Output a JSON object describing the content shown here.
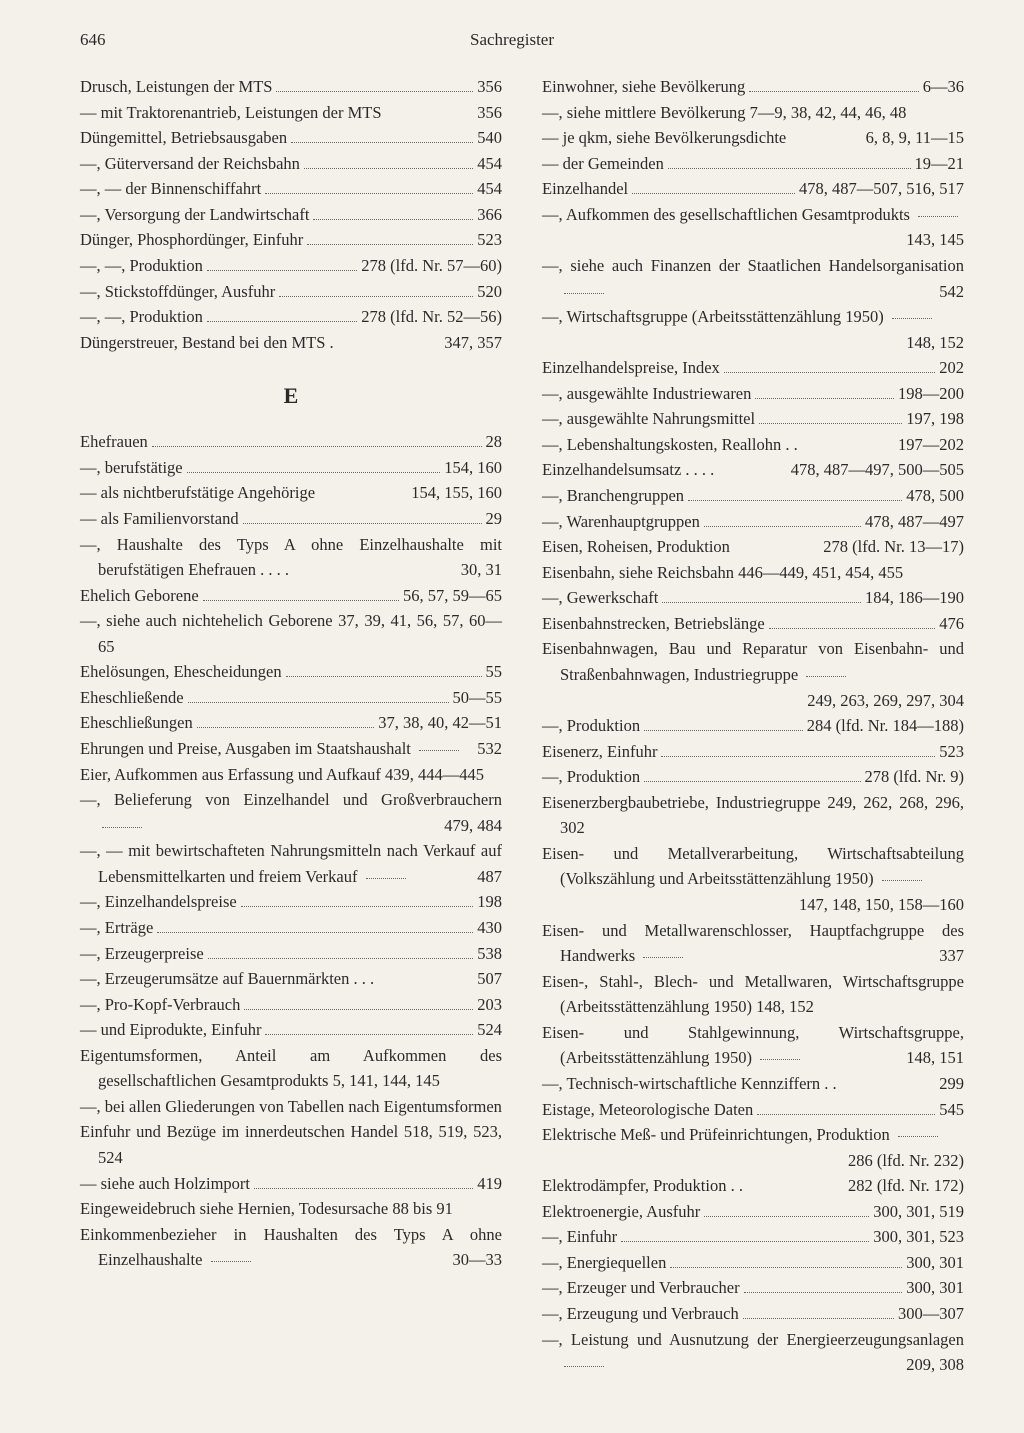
{
  "page_number": "646",
  "header_title": "Sachregister",
  "section_letter": "E",
  "left": [
    {
      "t": "Drusch, Leistungen der MTS",
      "p": "356",
      "d": true
    },
    {
      "t": "— mit Traktorenantrieb, Leistungen der MTS",
      "p": "356"
    },
    {
      "t": "Düngemittel, Betriebsausgaben",
      "p": "540",
      "d": true
    },
    {
      "t": "—, Güterversand der Reichsbahn",
      "p": "454",
      "d": true
    },
    {
      "t": "—, — der Binnenschiffahrt",
      "p": "454",
      "d": true
    },
    {
      "t": "—, Versorgung der Landwirtschaft",
      "p": "366",
      "d": true
    },
    {
      "t": "Dünger, Phosphordünger, Einfuhr",
      "p": "523",
      "d": true
    },
    {
      "t": "—, —, Produktion",
      "p": "278 (lfd. Nr. 57—60)",
      "d": true
    },
    {
      "t": "—, Stickstoffdünger, Ausfuhr",
      "p": "520",
      "d": true
    },
    {
      "t": "—, —, Produktion",
      "p": "278 (lfd. Nr. 52—56)",
      "d": true
    },
    {
      "t": "Düngerstreuer, Bestand bei den MTS .",
      "p": "347, 357"
    }
  ],
  "left2": [
    {
      "t": "Ehefrauen",
      "p": "28",
      "d": true
    },
    {
      "t": "—, berufstätige",
      "p": "154, 160",
      "d": true
    },
    {
      "t": "— als nichtberufstätige Angehörige",
      "p": "154, 155, 160"
    },
    {
      "t": "— als Familienvorstand",
      "p": "29",
      "d": true
    },
    {
      "t": "—, Haushalte des Typs A ohne Einzelhaushalte mit berufstätigen Ehefrauen . . . .",
      "p": "30, 31",
      "wrap": true
    },
    {
      "t": "Ehelich Geborene",
      "p": "56, 57, 59—65",
      "d": true
    },
    {
      "t": "—, siehe auch nichtehelich Geborene 37, 39, 41, 56, 57, 60—65",
      "plain": true
    },
    {
      "t": "Ehelösungen, Ehescheidungen",
      "p": "55",
      "d": true
    },
    {
      "t": "Eheschließende",
      "p": "50—55",
      "d": true
    },
    {
      "t": "Eheschließungen",
      "p": "37, 38, 40, 42—51",
      "d": true
    },
    {
      "t": "Ehrungen und Preise, Ausgaben im Staatshaushalt",
      "p": "532",
      "d": true,
      "wrap": true
    },
    {
      "t": "Eier, Aufkommen aus Erfassung und Aufkauf 439, 444—445",
      "plain": true
    },
    {
      "t": "—, Belieferung von Einzelhandel und Großverbrauchern",
      "p": "479, 484",
      "d": true,
      "wrap": true
    },
    {
      "t": "—, — mit bewirtschafteten Nahrungsmitteln nach Verkauf auf Lebensmittelkarten und freiem Verkauf",
      "p": "487",
      "d": true,
      "wrap": true
    },
    {
      "t": "—, Einzelhandelspreise",
      "p": "198",
      "d": true
    },
    {
      "t": "—, Erträge",
      "p": "430",
      "d": true
    },
    {
      "t": "—, Erzeugerpreise",
      "p": "538",
      "d": true
    },
    {
      "t": "—, Erzeugerumsätze auf Bauernmärkten . . .",
      "p": "507"
    },
    {
      "t": "—, Pro-Kopf-Verbrauch",
      "p": "203",
      "d": true
    },
    {
      "t": "— und Eiprodukte, Einfuhr",
      "p": "524",
      "d": true
    },
    {
      "t": "Eigentumsformen, Anteil am Aufkommen des gesellschaftlichen Gesamtprodukts 5, 141, 144, 145",
      "plain": true
    },
    {
      "t": "—, bei allen Gliederungen von Tabellen nach Eigentumsformen",
      "plain": true
    },
    {
      "t": "Einfuhr und Bezüge im innerdeutschen Handel 518, 519, 523, 524",
      "plain": true
    },
    {
      "t": "— siehe auch Holzimport",
      "p": "419",
      "d": true
    },
    {
      "t": "Eingeweidebruch siehe Hernien, Todesursache 88 bis 91",
      "plain": true
    },
    {
      "t": "Einkommenbezieher in Haushalten des Typs A ohne Einzelhaushalte",
      "p": "30—33",
      "d": true,
      "wrap": true
    }
  ],
  "right": [
    {
      "t": "Einwohner, siehe Bevölkerung",
      "p": "6—36",
      "d": true
    },
    {
      "t": "—, siehe mittlere Bevölkerung 7—9, 38, 42, 44, 46, 48",
      "plain": true
    },
    {
      "t": "— je qkm, siehe Bevölkerungsdichte",
      "p": "6, 8, 9, 11—15"
    },
    {
      "t": "— der Gemeinden",
      "p": "19—21",
      "d": true
    },
    {
      "t": "Einzelhandel",
      "p": "478, 487—507, 516, 517",
      "d": true
    },
    {
      "t": "—, Aufkommen des gesellschaftlichen Gesamtprodukts",
      "p": "143, 145",
      "d": true,
      "wrap": true
    },
    {
      "t": "—, siehe auch Finanzen der Staatlichen Handelsorganisation",
      "p": "542",
      "d": true,
      "wrap": true
    },
    {
      "t": "—, Wirtschaftsgruppe (Arbeitsstättenzählung 1950)",
      "p": "148, 152",
      "d": true,
      "wrap": true
    },
    {
      "t": "Einzelhandelspreise, Index",
      "p": "202",
      "d": true
    },
    {
      "t": "—, ausgewählte Industriewaren",
      "p": "198—200",
      "d": true
    },
    {
      "t": "—, ausgewählte Nahrungsmittel",
      "p": "197, 198",
      "d": true
    },
    {
      "t": "—, Lebenshaltungskosten, Reallohn . .",
      "p": "197—202"
    },
    {
      "t": "Einzelhandelsumsatz . . . .",
      "p": "478, 487—497, 500—505"
    },
    {
      "t": "—, Branchengruppen",
      "p": "478, 500",
      "d": true
    },
    {
      "t": "—, Warenhauptgruppen",
      "p": "478, 487—497",
      "d": true
    },
    {
      "t": "Eisen, Roheisen, Produktion",
      "p": "278 (lfd. Nr. 13—17)"
    },
    {
      "t": "Eisenbahn, siehe Reichsbahn 446—449, 451, 454, 455",
      "plain": true
    },
    {
      "t": "—, Gewerkschaft",
      "p": "184, 186—190",
      "d": true
    },
    {
      "t": "Eisenbahnstrecken, Betriebslänge",
      "p": "476",
      "d": true
    },
    {
      "t": "Eisenbahnwagen, Bau und Reparatur von Eisenbahn- und Straßenbahnwagen, Industriegruppe",
      "p": "249, 263, 269, 297, 304",
      "d": true,
      "wrap": true
    },
    {
      "t": "—, Produktion",
      "p": "284 (lfd. Nr. 184—188)",
      "d": true
    },
    {
      "t": "Eisenerz, Einfuhr",
      "p": "523",
      "d": true
    },
    {
      "t": "—, Produktion",
      "p": "278 (lfd. Nr. 9)",
      "d": true
    },
    {
      "t": "Eisenerzbergbaubetriebe, Industriegruppe 249, 262, 268, 296, 302",
      "plain": true
    },
    {
      "t": "Eisen- und Metallverarbeitung, Wirtschaftsabteilung (Volkszählung und Arbeitsstättenzählung 1950)",
      "p": "147, 148, 150, 158—160",
      "d": true,
      "wrap": true
    },
    {
      "t": "Eisen- und Metallwarenschlosser, Hauptfachgruppe des Handwerks",
      "p": "337",
      "d": true,
      "wrap": true
    },
    {
      "t": "Eisen-, Stahl-, Blech- und Metallwaren, Wirtschaftsgruppe (Arbeitsstättenzählung 1950) 148, 152",
      "plain": true
    },
    {
      "t": "Eisen- und Stahlgewinnung, Wirtschaftsgruppe, (Arbeitsstättenzählung 1950)",
      "p": "148, 151",
      "d": true,
      "wrap": true
    },
    {
      "t": "—, Technisch-wirtschaftliche Kennziffern . .",
      "p": "299"
    },
    {
      "t": "Eistage, Meteorologische Daten",
      "p": "545",
      "d": true
    },
    {
      "t": "Elektrische Meß- und Prüfeinrichtungen, Produktion",
      "p": "286 (lfd. Nr. 232)",
      "d": true,
      "wrap": true
    },
    {
      "t": "Elektrodämpfer, Produktion . .",
      "p": "282 (lfd. Nr. 172)"
    },
    {
      "t": "Elektroenergie, Ausfuhr",
      "p": "300, 301, 519",
      "d": true
    },
    {
      "t": "—, Einfuhr",
      "p": "300, 301, 523",
      "d": true
    },
    {
      "t": "—, Energiequellen",
      "p": "300, 301",
      "d": true
    },
    {
      "t": "—, Erzeuger und Verbraucher",
      "p": "300, 301",
      "d": true
    },
    {
      "t": "—, Erzeugung und Verbrauch",
      "p": "300—307",
      "d": true
    },
    {
      "t": "—, Leistung und Ausnutzung der Energieerzeugungsanlagen",
      "p": "209, 308",
      "d": true,
      "wrap": true
    }
  ]
}
